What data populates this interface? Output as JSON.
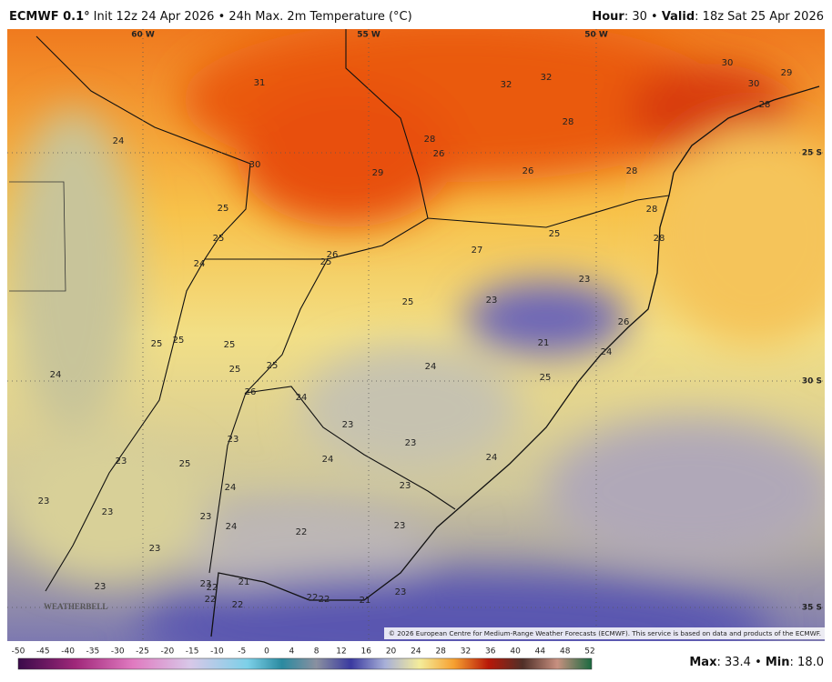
{
  "header": {
    "model": "ECMWF 0.1°",
    "description": "Init 12z 24 Apr 2026 • 24h Max. 2m Temperature (°C)",
    "hour_label": "Hour",
    "hour_value": ": 30 • ",
    "valid_label": "Valid",
    "valid_value": ": 18z Sat 25 Apr 2026"
  },
  "graticule": {
    "longitudes": [
      "60 W",
      "55 W",
      "50 W"
    ],
    "latitudes": [
      "25 S",
      "30 S",
      "35 S"
    ]
  },
  "map_labels": [
    31,
    32,
    32,
    30,
    29,
    30,
    28,
    28,
    28,
    26,
    24,
    30,
    29,
    26,
    28,
    25,
    25,
    24,
    26,
    25,
    27,
    25,
    28,
    28,
    23,
    25,
    23,
    26,
    21,
    24,
    25,
    25,
    25,
    25,
    25,
    24,
    24,
    25,
    26,
    24,
    23,
    23,
    23,
    24,
    24,
    25,
    23,
    23,
    24,
    23,
    23,
    23,
    24,
    22,
    23,
    23,
    23,
    23,
    21,
    22,
    22,
    22,
    22,
    22,
    21,
    23
  ],
  "logo": "WEATHERBELL",
  "copyright": "© 2026 European Centre for Medium-Range Weather Forecasts (ECMWF). This service is based on data and products of the ECMWF.",
  "colorbar": {
    "ticks": [
      -50,
      -45,
      -40,
      -35,
      -30,
      -25,
      -20,
      -15,
      -10,
      -5,
      0,
      4,
      8,
      12,
      16,
      20,
      24,
      28,
      32,
      36,
      40,
      44,
      48,
      52
    ]
  },
  "footer": {
    "max_label": "Max",
    "max_value": ": 33.4 • ",
    "min_label": "Min",
    "min_value": ": 18.0"
  }
}
